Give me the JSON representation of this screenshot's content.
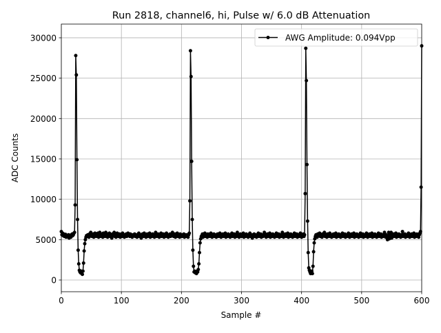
{
  "chart_data": {
    "type": "line",
    "title": "Run 2818, channel6, hi, Pulse w/ 6.0 dB Attenuation",
    "xlabel": "Sample #",
    "ylabel": "ADC Counts",
    "xlim": [
      0,
      600
    ],
    "ylim": [
      -1450,
      31700
    ],
    "xticks": [
      0,
      100,
      200,
      300,
      400,
      500,
      600
    ],
    "yticks": [
      0,
      5000,
      10000,
      15000,
      20000,
      25000,
      30000
    ],
    "grid": true,
    "legend_position": "top-right",
    "series": [
      {
        "name": "AWG Amplitude: 0.094Vpp",
        "color": "#000000",
        "marker": "circle",
        "x_start": 0,
        "x_step": 1,
        "values": [
          6000,
          5600,
          5800,
          5500,
          5700,
          5400,
          5600,
          5650,
          5300,
          5500,
          5350,
          5450,
          5600,
          5200,
          5400,
          5550,
          5300,
          5600,
          5700,
          5500,
          5600,
          5800,
          5900,
          9300,
          27800,
          25400,
          14900,
          7500,
          3700,
          2000,
          1200,
          1000,
          900,
          1100,
          800,
          700,
          1100,
          2100,
          3600,
          4500,
          5000,
          5300,
          5500,
          5400,
          5600,
          5500,
          5300,
          5700,
          5600,
          5900,
          5500,
          5400,
          5600,
          5700,
          5300,
          5500,
          5800,
          5600,
          5400,
          5700,
          5500,
          5800,
          5300,
          5600,
          5900,
          5400,
          5500,
          5700,
          5600,
          5300,
          5800,
          5500,
          5600,
          5400,
          5900,
          5500,
          5600,
          5300,
          5700,
          5500,
          5800,
          5400,
          5600,
          5500,
          5200,
          5700,
          5600,
          5500,
          5900,
          5400,
          5600,
          5300,
          5500,
          5800,
          5600,
          5400,
          5500,
          5700,
          5300,
          5600,
          5500,
          5400,
          5800,
          5600,
          5500,
          5300,
          5600,
          5500,
          5700,
          5400,
          5600,
          5800,
          5500,
          5600,
          5400,
          5700,
          5500,
          5600,
          5300,
          5500,
          5600,
          5500,
          5700,
          5400,
          5500,
          5600,
          5300,
          5600,
          5500,
          5800,
          5400,
          5500,
          5600,
          5200,
          5500,
          5700,
          5600,
          5400,
          5800,
          5500,
          5600,
          5300,
          5500,
          5700,
          5400,
          5600,
          5500,
          5800,
          5300,
          5600,
          5500,
          5400,
          5700,
          5600,
          5500,
          5300,
          5600,
          5900,
          5500,
          5400,
          5600,
          5700,
          5500,
          5300,
          5600,
          5500,
          5800,
          5400,
          5600,
          5500,
          5700,
          5300,
          5600,
          5500,
          5400,
          5800,
          5600,
          5500,
          5300,
          5600,
          5500,
          5700,
          5400,
          5600,
          5500,
          5900,
          5600,
          5400,
          5500,
          5700,
          5300,
          5600,
          5500,
          5800,
          5400,
          5600,
          5500,
          5300,
          5700,
          5600,
          5500,
          5400,
          5600,
          5500,
          5700,
          5300,
          5600,
          5500,
          5400,
          5600,
          5500,
          5300,
          5600,
          5800,
          9800,
          28400,
          25200,
          14700,
          7500,
          3700,
          1700,
          1000,
          1100,
          900,
          1000,
          800,
          1100,
          1000,
          1300,
          2000,
          3400,
          4600,
          5100,
          5400,
          5500,
          5700,
          5300,
          5600,
          5500,
          5800,
          5400,
          5600,
          5500,
          5300,
          5700,
          5600,
          5500,
          5400,
          5600,
          5800,
          5500,
          5300,
          5600,
          5500,
          5700,
          5400,
          5600,
          5500,
          5300,
          5600,
          5700,
          5500,
          5400,
          5600,
          5800,
          5500,
          5300,
          5600,
          5500,
          5700,
          5400,
          5600,
          5500,
          5800,
          5300,
          5600,
          5500,
          5400,
          5700,
          5600,
          5500,
          5300,
          5600,
          5500,
          5800,
          5400,
          5600,
          5500,
          5700,
          5300,
          5600,
          5500,
          5400,
          5900,
          5600,
          5500,
          5300,
          5600,
          5700,
          5500,
          5400,
          5600,
          5500,
          5800,
          5300,
          5600,
          5500,
          5400,
          5700,
          5600,
          5500,
          5300,
          5600,
          5500,
          5800,
          5400,
          5600,
          5500,
          5200,
          5600,
          5500,
          5700,
          5400,
          5600,
          5500,
          5300,
          5600,
          5500,
          5800,
          5400,
          5600,
          5500,
          5700,
          5300,
          5600,
          5500,
          5400,
          5600,
          5900,
          5500,
          5600,
          5300,
          5500,
          5700,
          5400,
          5600,
          5500,
          5800,
          5300,
          5600,
          5500,
          5400,
          5700,
          5600,
          5500,
          5300,
          5600,
          5500,
          5800,
          5400,
          5600,
          5500,
          5700,
          5300,
          5600,
          5500,
          5400,
          5600,
          5900,
          5500,
          5300,
          5600,
          5500,
          5700,
          5400,
          5600,
          5500,
          5800,
          5300,
          5600,
          5500,
          5400,
          5700,
          5600,
          5500,
          5300,
          5600,
          5500,
          5800,
          5400,
          5600,
          5500,
          5700,
          5300,
          5600,
          5500,
          5400,
          5600,
          5800,
          5500,
          5300,
          5600,
          5500,
          5700,
          5400,
          5600,
          10700,
          28700,
          24700,
          14300,
          7300,
          3400,
          1500,
          1200,
          1000,
          800,
          900,
          1100,
          800,
          1700,
          3500,
          4600,
          5100,
          5400,
          5600,
          5500,
          5300,
          5700,
          5600,
          5500,
          5800,
          5400,
          5600,
          5500,
          5300,
          5700,
          5600,
          5500,
          5900,
          5400,
          5600,
          5500,
          5300,
          5700,
          5600,
          5500,
          5400,
          5800,
          5600,
          5500,
          5300,
          5600,
          5500,
          5700,
          5400,
          5600,
          5500,
          5800,
          5300,
          5600,
          5500,
          5400,
          5700,
          5600,
          5500,
          5300,
          5600,
          5500,
          5800,
          5400,
          5600,
          5500,
          5700,
          5300,
          5600,
          5500,
          5400,
          5600,
          5800,
          5500,
          5300,
          5600,
          5500,
          5700,
          5400,
          5600,
          5500,
          5800,
          5300,
          5600,
          5500,
          5400,
          5700,
          5600,
          5500,
          5300,
          5600,
          5500,
          5800,
          5400,
          5600,
          5500,
          5700,
          5300,
          5600,
          5500,
          5400,
          5600,
          5800,
          5500,
          5300,
          5600,
          5500,
          5700,
          5400,
          5600,
          5500,
          5800,
          5300,
          5600,
          5500,
          5400,
          5700,
          5600,
          5500,
          5300,
          5600,
          5500,
          5800,
          5400,
          5600,
          5500,
          5700,
          5300,
          5600,
          5500,
          5400,
          5600,
          5900,
          5500,
          5300,
          5600,
          5500,
          5000,
          5400,
          5900,
          5100,
          5800,
          5300,
          5900,
          5200,
          5600,
          5500,
          5700,
          5400,
          5600,
          5500,
          5800,
          5300,
          5600,
          5500,
          5400,
          5700,
          5600,
          5500,
          5300,
          5600,
          5500,
          6000,
          5400,
          5600,
          5500,
          5700,
          5300,
          5600,
          5500,
          5400,
          5600,
          5800,
          5500,
          5300,
          5600,
          5500,
          5700,
          5400,
          5600,
          5500,
          5800,
          5300,
          5600,
          5500,
          5400,
          5700,
          5600,
          5500,
          5300,
          5600,
          5800,
          6000,
          11500,
          29000
        ]
      }
    ]
  }
}
